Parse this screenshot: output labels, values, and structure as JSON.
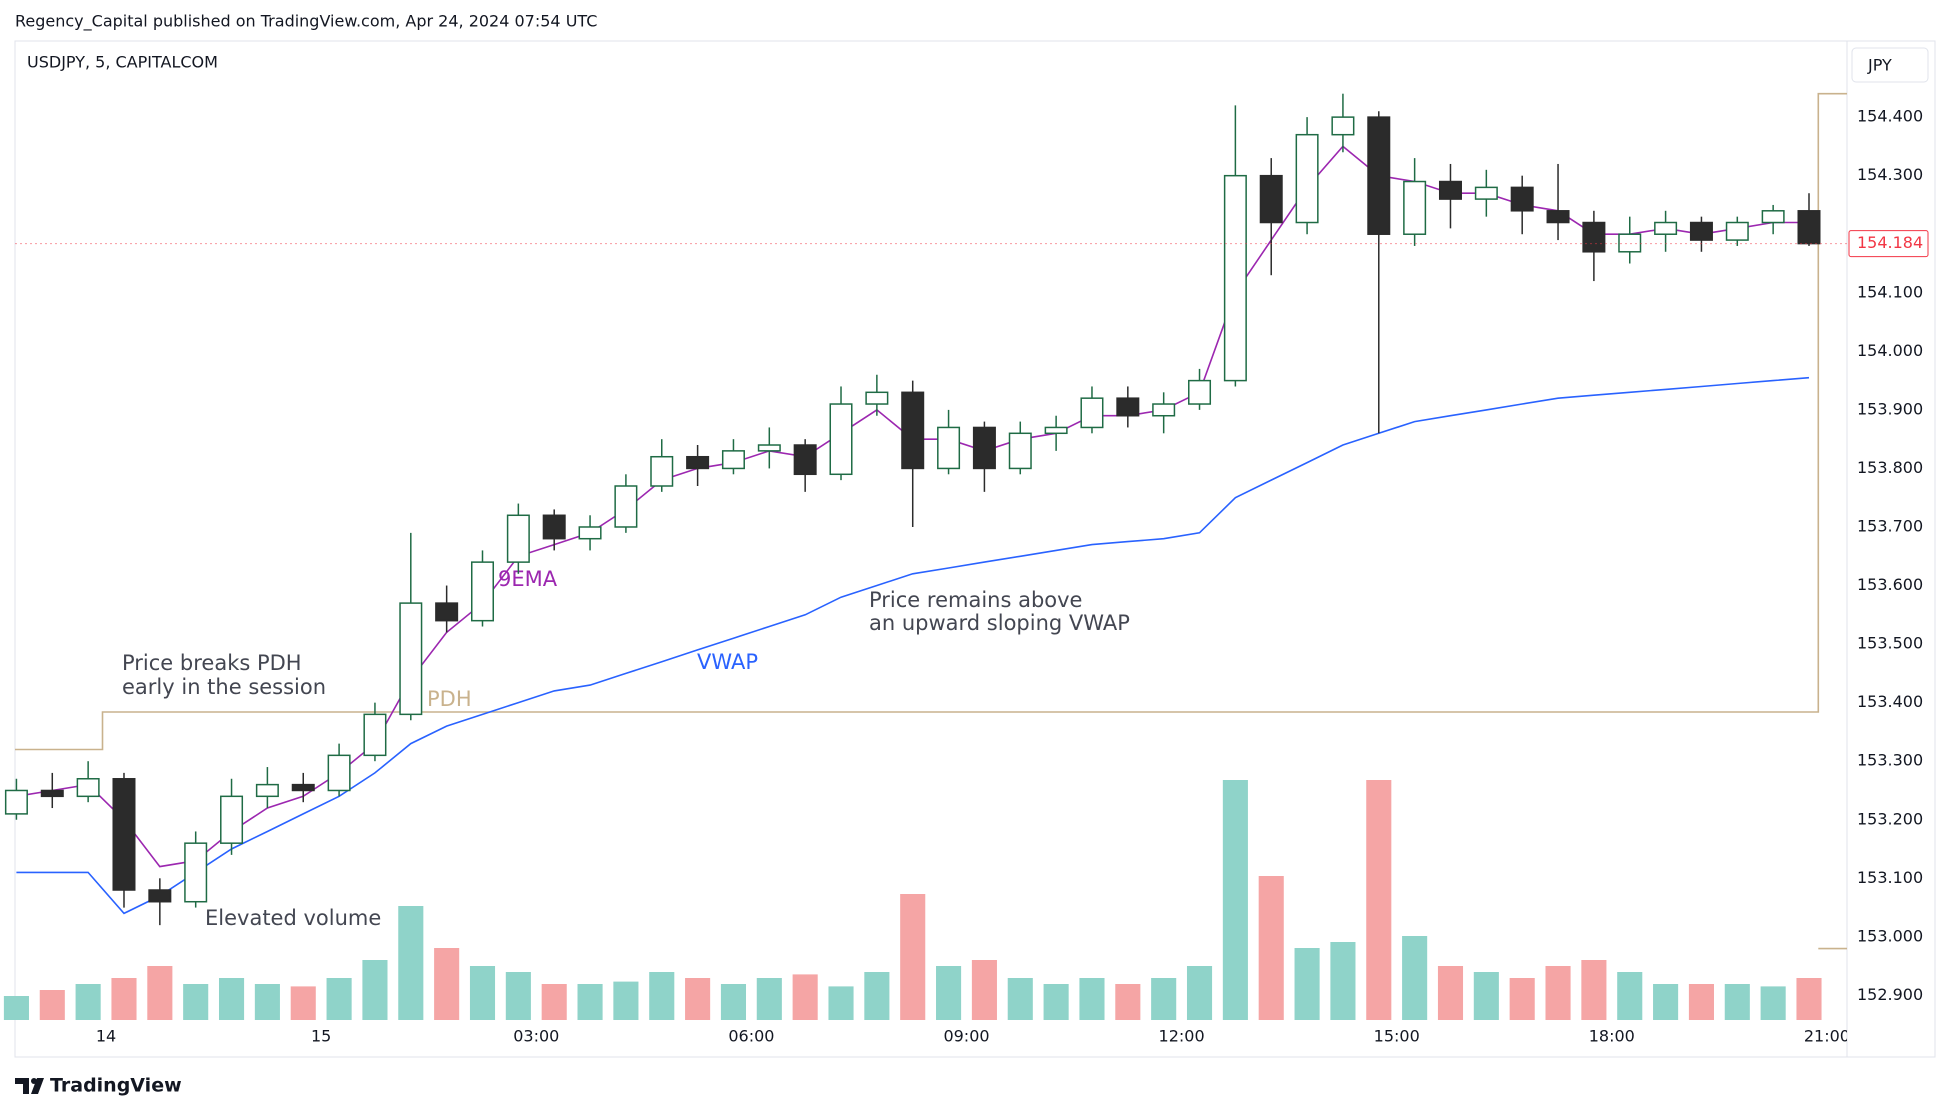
{
  "header": "Regency_Capital published on TradingView.com, Apr 24, 2024 07:54 UTC",
  "footer": {
    "brand": "TradingView"
  },
  "chart_data": {
    "type": "candlestick",
    "symbol": "USDJPY, 5, CAPITALCOM",
    "currency": "JPY",
    "last_price": 154.184,
    "annotations": [
      "Price breaks PDH",
      "early in the session",
      "Price remains above",
      "an upward sloping VWAP",
      "Elevated volume"
    ],
    "x": [
      -4.25,
      -3.75,
      -3.25,
      -2.75,
      -2.25,
      -1.75,
      -1.25,
      -0.75,
      -0.25,
      0.25,
      0.75,
      1.25,
      1.75,
      2.25,
      2.75,
      3.25,
      3.75,
      4.25,
      4.75,
      5.25,
      5.75,
      6.25,
      6.75,
      7.25,
      7.75,
      8.25,
      8.75,
      9.25,
      9.75,
      10.25,
      10.75,
      11.25,
      11.75,
      12.25,
      12.75,
      13.25,
      13.75,
      14.25,
      14.75,
      15.25,
      15.75,
      16.25,
      16.75,
      17.25,
      17.75,
      18.25,
      18.75,
      19.25,
      19.75,
      20.25,
      20.75
    ],
    "open": [
      153.21,
      153.25,
      153.24,
      153.27,
      153.08,
      153.06,
      153.16,
      153.24,
      153.26,
      153.25,
      153.31,
      153.38,
      153.57,
      153.54,
      153.64,
      153.72,
      153.68,
      153.7,
      153.77,
      153.82,
      153.8,
      153.83,
      153.84,
      153.79,
      153.91,
      153.93,
      153.8,
      153.87,
      153.8,
      153.86,
      153.87,
      153.92,
      153.89,
      153.91,
      153.95,
      154.3,
      154.22,
      154.37,
      154.4,
      154.2,
      154.29,
      154.26,
      154.28,
      154.24,
      154.22,
      154.17,
      154.2,
      154.22,
      154.19,
      154.22,
      154.24
    ],
    "high": [
      153.27,
      153.28,
      153.3,
      153.28,
      153.1,
      153.18,
      153.27,
      153.29,
      153.28,
      153.33,
      153.4,
      153.69,
      153.6,
      153.66,
      153.74,
      153.73,
      153.72,
      153.79,
      153.85,
      153.84,
      153.85,
      153.87,
      153.85,
      153.94,
      153.96,
      153.95,
      153.9,
      153.88,
      153.88,
      153.89,
      153.94,
      153.94,
      153.93,
      153.97,
      154.42,
      154.33,
      154.4,
      154.44,
      154.41,
      154.33,
      154.32,
      154.31,
      154.3,
      154.32,
      154.24,
      154.23,
      154.24,
      154.23,
      154.23,
      154.25,
      154.27
    ],
    "low": [
      153.2,
      153.22,
      153.23,
      153.05,
      153.02,
      153.05,
      153.14,
      153.22,
      153.23,
      153.24,
      153.3,
      153.37,
      153.52,
      153.53,
      153.62,
      153.66,
      153.66,
      153.69,
      153.76,
      153.77,
      153.79,
      153.8,
      153.76,
      153.78,
      153.89,
      153.7,
      153.79,
      153.76,
      153.79,
      153.83,
      153.86,
      153.87,
      153.86,
      153.9,
      153.94,
      154.13,
      154.2,
      154.34,
      153.86,
      154.18,
      154.21,
      154.23,
      154.2,
      154.19,
      154.12,
      154.15,
      154.17,
      154.17,
      154.18,
      154.2,
      154.18
    ],
    "close": [
      153.25,
      153.24,
      153.27,
      153.08,
      153.06,
      153.16,
      153.24,
      153.26,
      153.25,
      153.31,
      153.38,
      153.57,
      153.54,
      153.64,
      153.72,
      153.68,
      153.7,
      153.77,
      153.82,
      153.8,
      153.83,
      153.84,
      153.79,
      153.91,
      153.93,
      153.8,
      153.87,
      153.8,
      153.86,
      153.87,
      153.92,
      153.89,
      153.91,
      153.95,
      154.3,
      154.22,
      154.37,
      154.4,
      154.2,
      154.29,
      154.26,
      154.28,
      154.24,
      154.22,
      154.17,
      154.2,
      154.22,
      154.19,
      154.22,
      154.24,
      154.184
    ],
    "up_color": "#1f6b45",
    "down_color": "#2b2b2b",
    "volume": {
      "up_color": "#8fd3c9",
      "down_color": "#f5a5a5",
      "values": [
        20,
        25,
        30,
        35,
        45,
        30,
        35,
        30,
        28,
        35,
        50,
        95,
        60,
        45,
        40,
        30,
        30,
        32,
        40,
        35,
        30,
        35,
        38,
        28,
        40,
        105,
        45,
        50,
        35,
        30,
        35,
        30,
        35,
        45,
        200,
        120,
        60,
        65,
        200,
        70,
        45,
        40,
        35,
        45,
        50,
        40,
        30,
        30,
        30,
        28,
        35
      ]
    },
    "series": [
      {
        "name": "9EMA",
        "color": "#9c27b0",
        "values": [
          153.24,
          153.25,
          153.26,
          153.2,
          153.12,
          153.13,
          153.18,
          153.22,
          153.24,
          153.28,
          153.33,
          153.44,
          153.52,
          153.57,
          153.65,
          153.67,
          153.69,
          153.73,
          153.78,
          153.8,
          153.81,
          153.83,
          153.82,
          153.86,
          153.9,
          153.85,
          153.85,
          153.83,
          153.85,
          153.86,
          153.89,
          153.89,
          153.9,
          153.93,
          154.1,
          154.19,
          154.28,
          154.35,
          154.3,
          154.29,
          154.27,
          154.27,
          154.25,
          154.24,
          154.2,
          154.2,
          154.21,
          154.2,
          154.21,
          154.22,
          154.22
        ]
      },
      {
        "name": "VWAP",
        "color": "#2962ff",
        "values": [
          153.11,
          153.11,
          153.11,
          153.04,
          153.07,
          153.11,
          153.15,
          153.18,
          153.21,
          153.24,
          153.28,
          153.33,
          153.36,
          153.38,
          153.4,
          153.42,
          153.43,
          153.45,
          153.47,
          153.49,
          153.51,
          153.53,
          153.55,
          153.58,
          153.6,
          153.62,
          153.63,
          153.64,
          153.65,
          153.66,
          153.67,
          153.675,
          153.68,
          153.69,
          153.75,
          153.78,
          153.81,
          153.84,
          153.86,
          153.88,
          153.89,
          153.9,
          153.91,
          153.92,
          153.925,
          153.93,
          153.935,
          153.94,
          153.945,
          153.95,
          153.955
        ]
      }
    ],
    "pdh": {
      "name": "PDH",
      "color": "#c9b28d",
      "x": [
        -4.27,
        -3.05,
        -3.05,
        20.88,
        20.88,
        21.28,
        21.28,
        20.88,
        21.28
      ],
      "values": [
        153.32,
        153.32,
        153.384,
        153.384,
        154.44,
        154.44,
        null,
        152.98,
        152.98
      ]
    },
    "xlim": [
      -4.27,
      21.28
    ],
    "ylim": [
      152.858,
      154.53
    ],
    "xticks": [
      {
        "value": -3,
        "label": "14"
      },
      {
        "value": 0,
        "label": "15"
      },
      {
        "value": 3,
        "label": "03:00"
      },
      {
        "value": 6,
        "label": "06:00"
      },
      {
        "value": 9,
        "label": "09:00"
      },
      {
        "value": 12,
        "label": "12:00"
      },
      {
        "value": 15,
        "label": "15:00"
      },
      {
        "value": 18,
        "label": "18:00"
      },
      {
        "value": 21,
        "label": "21:00"
      }
    ],
    "yticks": [
      {
        "value": 154.4,
        "label": "154.400"
      },
      {
        "value": 154.3,
        "label": "154.300"
      },
      {
        "value": 154.1,
        "label": "154.100"
      },
      {
        "value": 154.0,
        "label": "154.000"
      },
      {
        "value": 153.9,
        "label": "153.900"
      },
      {
        "value": 153.8,
        "label": "153.800"
      },
      {
        "value": 153.7,
        "label": "153.700"
      },
      {
        "value": 153.6,
        "label": "153.600"
      },
      {
        "value": 153.5,
        "label": "153.500"
      },
      {
        "value": 153.4,
        "label": "153.400"
      },
      {
        "value": 153.3,
        "label": "153.300"
      },
      {
        "value": 153.2,
        "label": "153.200"
      },
      {
        "value": 153.1,
        "label": "153.100"
      },
      {
        "value": 153.0,
        "label": "153.000"
      },
      {
        "value": 152.9,
        "label": "152.900"
      }
    ]
  }
}
